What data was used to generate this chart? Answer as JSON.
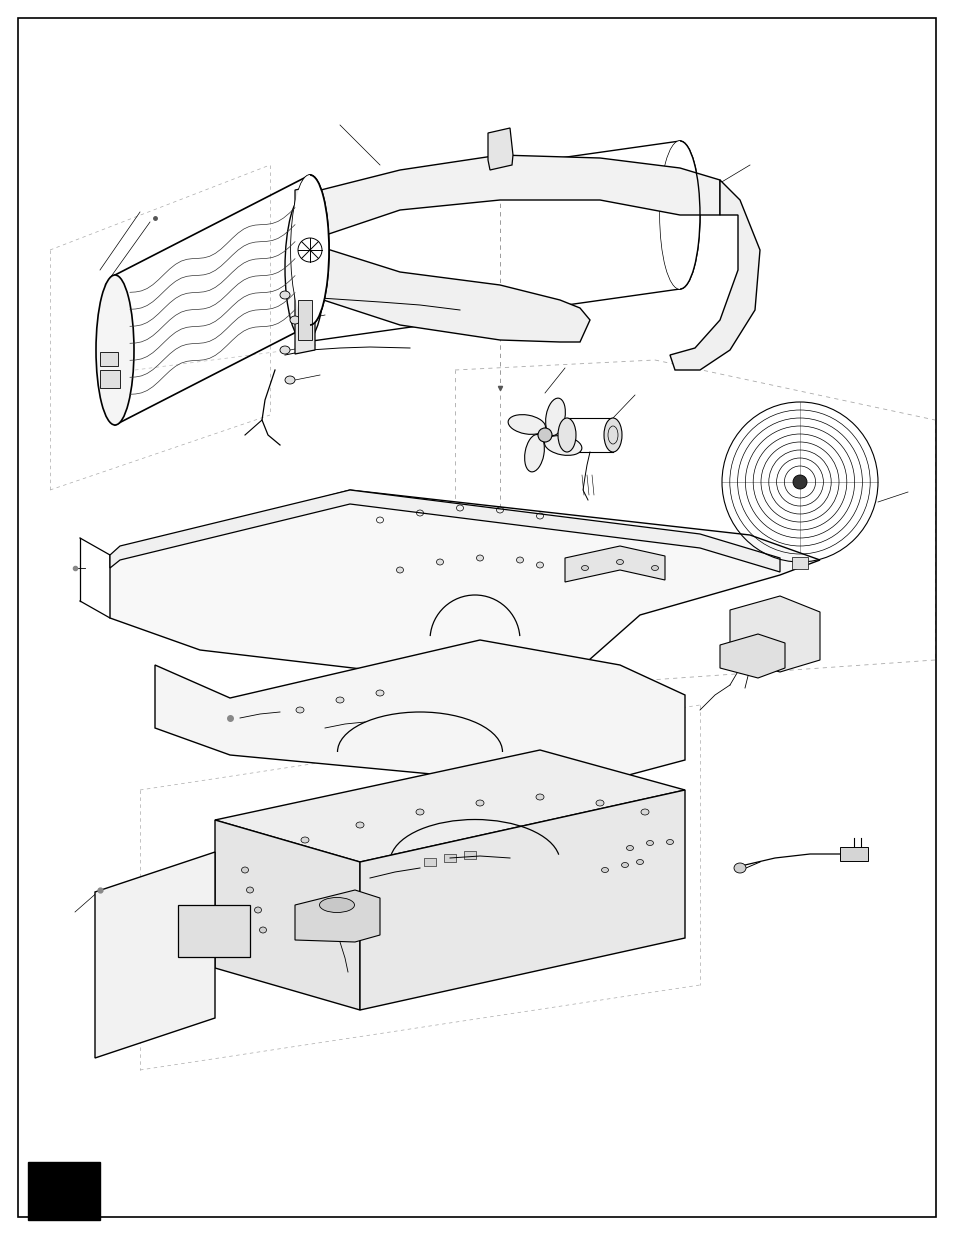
{
  "bg_color": "#ffffff",
  "line_color": "#000000",
  "fig_width": 9.54,
  "fig_height": 12.35
}
